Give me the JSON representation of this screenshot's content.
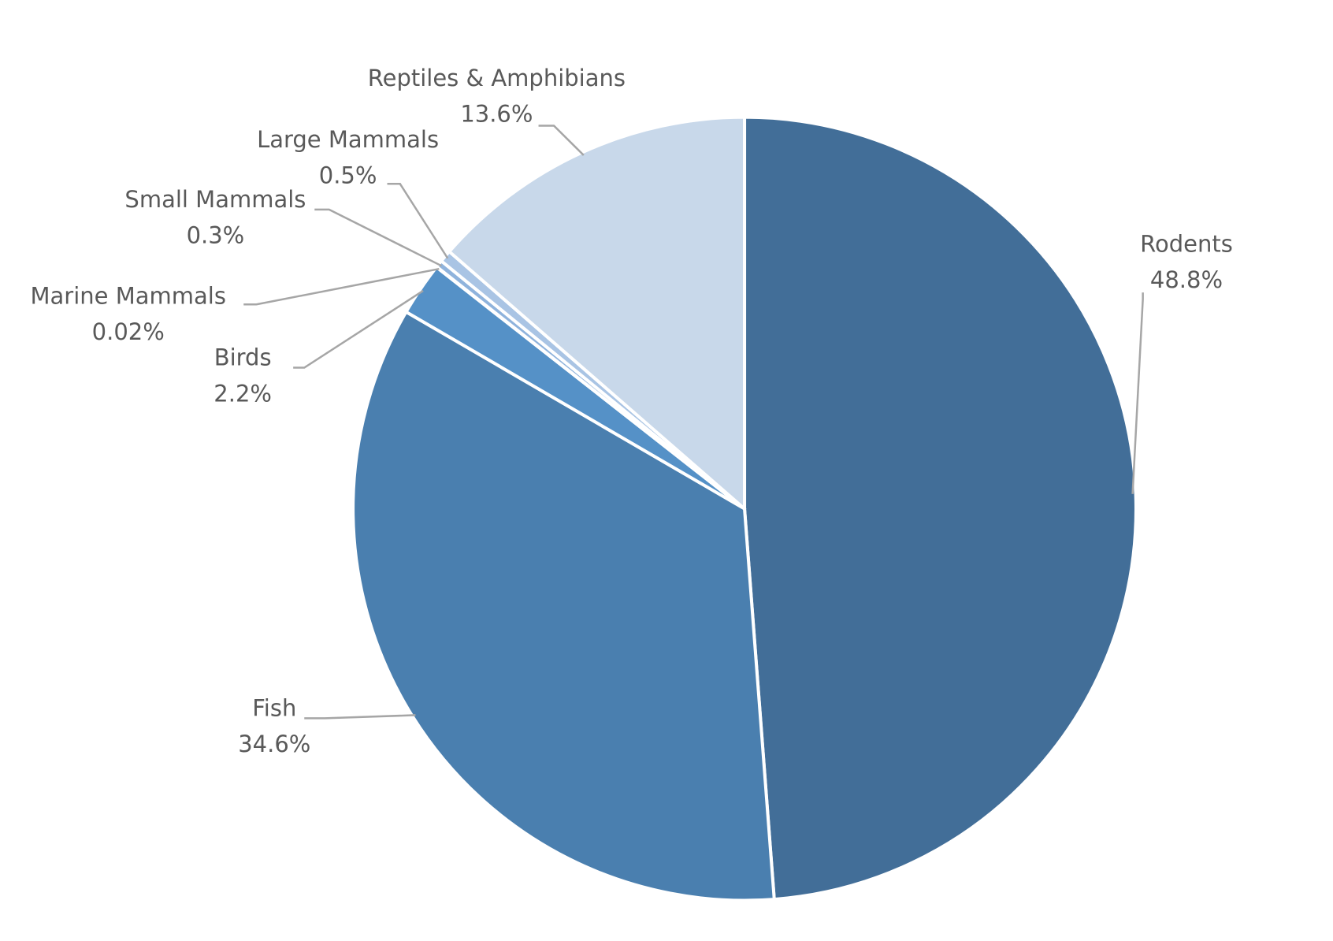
{
  "chart_data": {
    "type": "pie",
    "categories": [
      "Rodents",
      "Fish",
      "Birds",
      "Marine Mammals",
      "Small Mammals",
      "Large Mammals",
      "Reptiles & Amphibians"
    ],
    "values": [
      48.8,
      34.6,
      2.2,
      0.02,
      0.3,
      0.5,
      13.6
    ],
    "value_labels": [
      "48.8%",
      "34.6%",
      "2.2%",
      "0.02%",
      "0.3%",
      "0.5%",
      "13.6%"
    ],
    "colors": [
      "#426e98",
      "#4a7faf",
      "#5591c7",
      "#6e9fd0",
      "#8fb3dc",
      "#a9c4e4",
      "#c8d8ea"
    ]
  }
}
